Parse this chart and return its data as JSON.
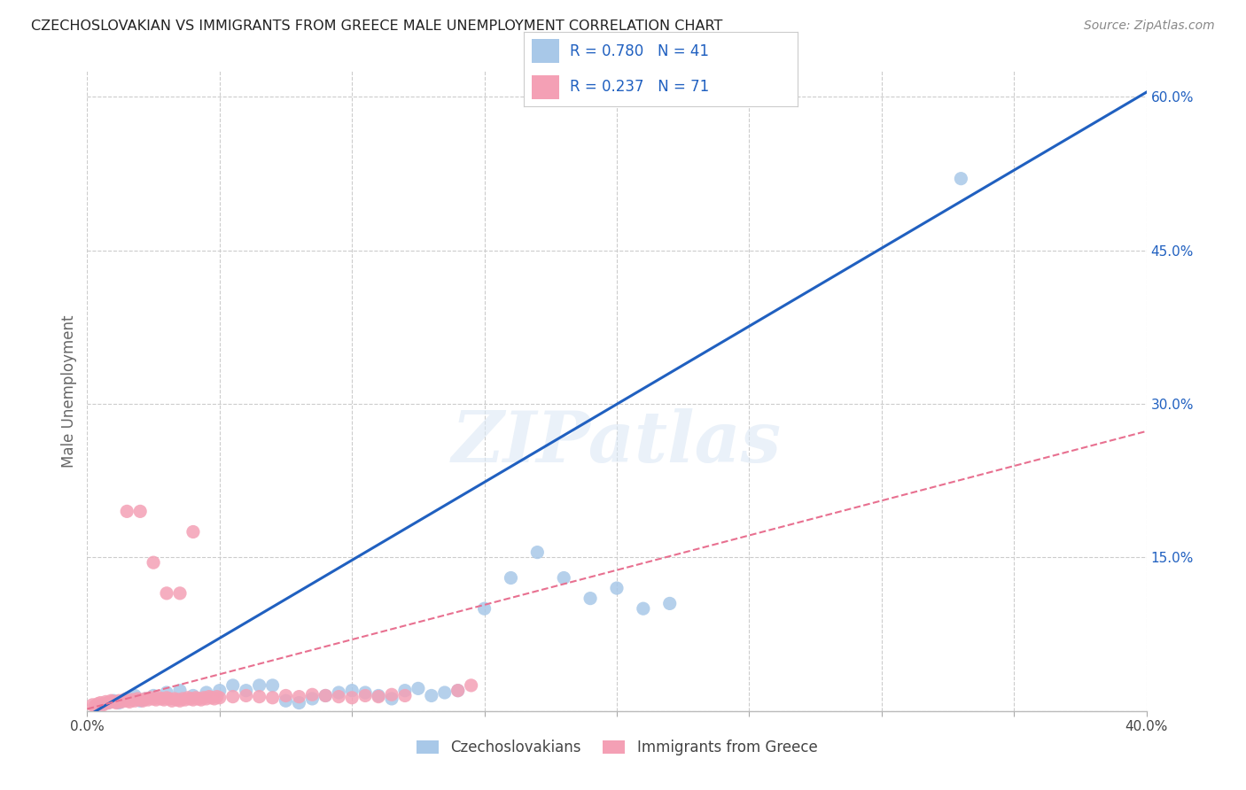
{
  "title": "CZECHOSLOVAKIAN VS IMMIGRANTS FROM GREECE MALE UNEMPLOYMENT CORRELATION CHART",
  "source": "Source: ZipAtlas.com",
  "ylabel": "Male Unemployment",
  "xlim": [
    0.0,
    0.4
  ],
  "ylim": [
    0.0,
    0.625
  ],
  "xticks": [
    0.0,
    0.05,
    0.1,
    0.15,
    0.2,
    0.25,
    0.3,
    0.35,
    0.4
  ],
  "yticks_right": [
    0.0,
    0.15,
    0.3,
    0.45,
    0.6
  ],
  "ytick_labels_right": [
    "",
    "15.0%",
    "30.0%",
    "45.0%",
    "60.0%"
  ],
  "blue_color": "#a8c8e8",
  "pink_color": "#f4a0b5",
  "blue_line_color": "#2060c0",
  "pink_line_color": "#e87090",
  "legend_text_color": "#2060c0",
  "watermark": "ZIPatlas",
  "grid_color": "#cccccc",
  "background_color": "#ffffff",
  "blue_scatter_x": [
    0.005,
    0.008,
    0.01,
    0.012,
    0.015,
    0.018,
    0.02,
    0.022,
    0.025,
    0.03,
    0.035,
    0.04,
    0.045,
    0.05,
    0.055,
    0.06,
    0.065,
    0.07,
    0.075,
    0.08,
    0.085,
    0.09,
    0.095,
    0.1,
    0.105,
    0.11,
    0.115,
    0.12,
    0.125,
    0.13,
    0.135,
    0.14,
    0.15,
    0.16,
    0.17,
    0.18,
    0.19,
    0.2,
    0.21,
    0.22,
    0.33
  ],
  "blue_scatter_y": [
    0.005,
    0.008,
    0.01,
    0.008,
    0.012,
    0.015,
    0.01,
    0.012,
    0.015,
    0.018,
    0.02,
    0.015,
    0.018,
    0.02,
    0.025,
    0.02,
    0.025,
    0.025,
    0.01,
    0.008,
    0.012,
    0.015,
    0.018,
    0.02,
    0.018,
    0.015,
    0.012,
    0.02,
    0.022,
    0.015,
    0.018,
    0.02,
    0.1,
    0.13,
    0.155,
    0.13,
    0.11,
    0.12,
    0.1,
    0.105,
    0.52
  ],
  "pink_scatter_x": [
    0.002,
    0.003,
    0.004,
    0.005,
    0.006,
    0.007,
    0.008,
    0.009,
    0.01,
    0.011,
    0.012,
    0.013,
    0.014,
    0.015,
    0.016,
    0.017,
    0.018,
    0.019,
    0.02,
    0.021,
    0.022,
    0.023,
    0.024,
    0.025,
    0.026,
    0.027,
    0.028,
    0.029,
    0.03,
    0.031,
    0.032,
    0.033,
    0.034,
    0.035,
    0.036,
    0.037,
    0.038,
    0.039,
    0.04,
    0.041,
    0.042,
    0.043,
    0.044,
    0.045,
    0.046,
    0.047,
    0.048,
    0.049,
    0.05,
    0.055,
    0.06,
    0.065,
    0.07,
    0.075,
    0.08,
    0.085,
    0.09,
    0.095,
    0.1,
    0.105,
    0.11,
    0.115,
    0.12,
    0.015,
    0.02,
    0.025,
    0.03,
    0.035,
    0.04,
    0.14,
    0.145
  ],
  "pink_scatter_y": [
    0.006,
    0.005,
    0.007,
    0.008,
    0.006,
    0.009,
    0.008,
    0.01,
    0.009,
    0.008,
    0.01,
    0.009,
    0.011,
    0.01,
    0.009,
    0.011,
    0.01,
    0.012,
    0.011,
    0.01,
    0.012,
    0.011,
    0.013,
    0.012,
    0.011,
    0.013,
    0.012,
    0.011,
    0.013,
    0.012,
    0.01,
    0.012,
    0.011,
    0.01,
    0.012,
    0.011,
    0.013,
    0.012,
    0.011,
    0.013,
    0.012,
    0.011,
    0.013,
    0.012,
    0.014,
    0.013,
    0.012,
    0.014,
    0.013,
    0.014,
    0.015,
    0.014,
    0.013,
    0.015,
    0.014,
    0.016,
    0.015,
    0.014,
    0.013,
    0.015,
    0.014,
    0.016,
    0.015,
    0.195,
    0.195,
    0.145,
    0.115,
    0.115,
    0.175,
    0.02,
    0.025
  ],
  "blue_line_x": [
    0.0,
    0.407
  ],
  "blue_line_y": [
    -0.005,
    0.615
  ],
  "pink_line_x": [
    0.0,
    0.407
  ],
  "pink_line_y": [
    0.002,
    0.278
  ],
  "bottom_legend_labels": [
    "Czechoslovakians",
    "Immigrants from Greece"
  ]
}
